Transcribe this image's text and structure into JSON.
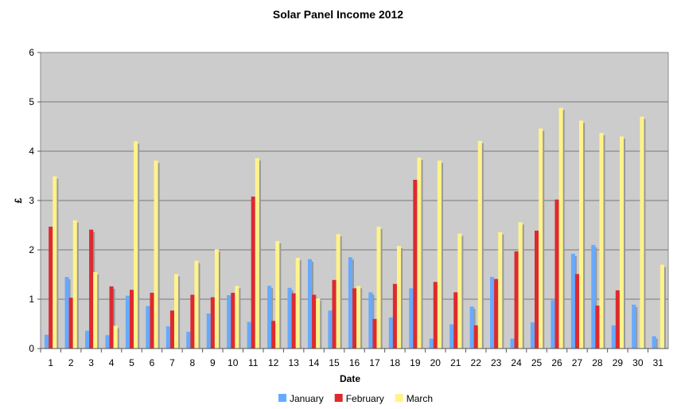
{
  "chart_data": {
    "type": "bar",
    "title": "Solar Panel Income 2012",
    "xlabel": "Date",
    "ylabel": "£",
    "ylim": [
      0,
      6
    ],
    "yticks": [
      "0",
      "1",
      "2",
      "3",
      "4",
      "5",
      "6"
    ],
    "grid": true,
    "legend_position": "bottom",
    "categories": [
      "1",
      "2",
      "3",
      "4",
      "5",
      "6",
      "7",
      "8",
      "9",
      "10",
      "11",
      "12",
      "13",
      "14",
      "15",
      "16",
      "17",
      "18",
      "19",
      "20",
      "21",
      "22",
      "23",
      "24",
      "25",
      "26",
      "27",
      "28",
      "29",
      "30",
      "31"
    ],
    "series": [
      {
        "name": "January",
        "color": "#66aaff",
        "values": [
          0.28,
          1.45,
          0.36,
          0.27,
          1.07,
          0.86,
          0.45,
          0.34,
          0.71,
          1.08,
          0.54,
          1.27,
          1.23,
          1.81,
          0.77,
          1.85,
          1.14,
          0.63,
          1.22,
          0.2,
          0.49,
          0.85,
          1.45,
          0.2,
          0.53,
          0.98,
          1.92,
          2.1,
          0.47,
          0.89,
          0.25
        ]
      },
      {
        "name": "February",
        "color": "#dd2a2e",
        "values": [
          2.47,
          1.03,
          2.41,
          1.26,
          1.19,
          1.13,
          0.77,
          1.09,
          1.04,
          1.13,
          3.08,
          0.56,
          1.12,
          1.09,
          1.39,
          1.22,
          0.6,
          1.31,
          3.42,
          1.35,
          1.14,
          0.47,
          1.41,
          1.97,
          2.39,
          3.02,
          1.51,
          0.87,
          1.18,
          0,
          0
        ]
      },
      {
        "name": "March",
        "color": "#fff38a",
        "values": [
          3.49,
          2.6,
          1.55,
          0.46,
          4.2,
          3.81,
          1.51,
          1.78,
          2.01,
          1.27,
          3.86,
          2.18,
          1.84,
          1.02,
          2.32,
          1.27,
          2.47,
          2.08,
          3.87,
          3.81,
          2.33,
          4.21,
          2.36,
          2.56,
          4.46,
          4.88,
          4.62,
          4.37,
          4.3,
          4.7,
          1.7
        ]
      }
    ]
  }
}
